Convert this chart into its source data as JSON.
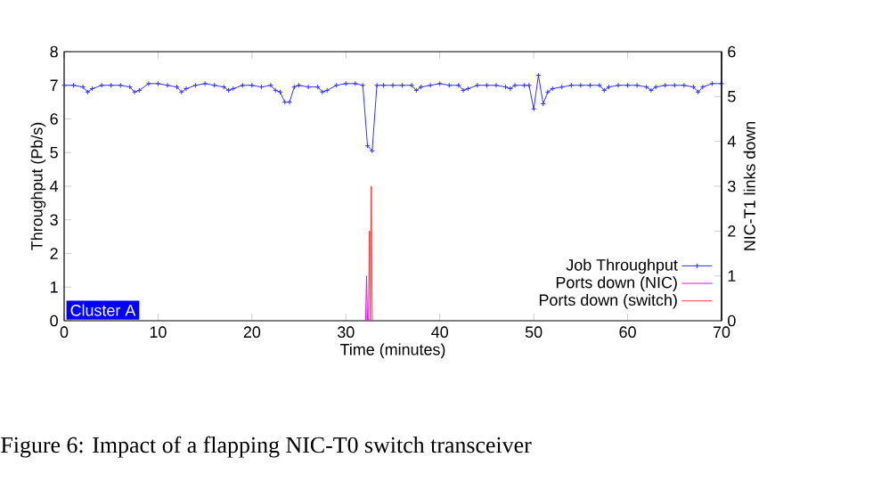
{
  "chart_data": {
    "type": "line",
    "xlabel": "Time (minutes)",
    "ylabel": "Throughput (Pb/s)",
    "y2label": "NIC-T1 links down",
    "xlim": [
      0,
      70
    ],
    "xticks": [
      0,
      10,
      20,
      30,
      40,
      50,
      60,
      70
    ],
    "ylim": [
      0,
      8
    ],
    "yticks": [
      0,
      1,
      2,
      3,
      4,
      5,
      6,
      7,
      8
    ],
    "y2lim": [
      0,
      6
    ],
    "y2ticks": [
      0,
      1,
      2,
      3,
      4,
      5,
      6
    ],
    "legend": "bottom right",
    "annotations": [
      "Cluster A",
      "Figure 6: Impact of a flapping NIC-T0 switch transceiver"
    ],
    "series": [
      {
        "name": "Job Throughput",
        "color": "#3333ff",
        "marker": "cross",
        "x": [
          0,
          1,
          2,
          2.5,
          3,
          4,
          5,
          6,
          7,
          7.5,
          8,
          9,
          10,
          11,
          12,
          12.5,
          13,
          14,
          15,
          16,
          17,
          17.5,
          18,
          19,
          20,
          21,
          22,
          22.5,
          23,
          23.5,
          24,
          24.5,
          25,
          26,
          27,
          27.5,
          28,
          29,
          30,
          31,
          31.8,
          32.3,
          32.8,
          33.3,
          34,
          35,
          36,
          37,
          37.5,
          38,
          39,
          40,
          41,
          42,
          42.5,
          43,
          44,
          45,
          46,
          47,
          47.5,
          48,
          49,
          49.5,
          50,
          50.5,
          51,
          51.5,
          52,
          53,
          54,
          55,
          56,
          57,
          57.5,
          58,
          59,
          60,
          61,
          62,
          62.5,
          63,
          64,
          65,
          66,
          67,
          67.5,
          68,
          69,
          70
        ],
        "values": [
          7.0,
          7.0,
          6.95,
          6.8,
          6.9,
          7.0,
          7.0,
          7.0,
          6.95,
          6.8,
          6.85,
          7.05,
          7.05,
          7.0,
          6.95,
          6.8,
          6.9,
          7.0,
          7.05,
          7.0,
          6.95,
          6.85,
          6.9,
          7.0,
          7.0,
          6.95,
          7.0,
          6.85,
          6.8,
          6.5,
          6.5,
          6.95,
          7.0,
          6.95,
          6.95,
          6.8,
          6.85,
          7.0,
          7.05,
          7.05,
          7.0,
          5.2,
          5.05,
          7.0,
          7.0,
          7.0,
          7.0,
          7.0,
          6.85,
          6.95,
          7.0,
          7.05,
          7.0,
          7.0,
          6.85,
          6.9,
          7.0,
          7.0,
          7.0,
          6.95,
          6.9,
          7.0,
          7.0,
          7.0,
          6.3,
          7.3,
          6.45,
          6.8,
          6.9,
          6.95,
          7.0,
          7.0,
          7.0,
          7.0,
          6.85,
          6.95,
          7.0,
          7.0,
          7.0,
          6.95,
          6.85,
          6.95,
          7.0,
          7.0,
          7.0,
          6.95,
          6.8,
          6.95,
          7.05,
          7.05
        ]
      },
      {
        "name": "Ports down (NIC)",
        "color": "#ff00ff",
        "axis": "y2",
        "x": [
          32.1,
          32.2,
          32.3
        ],
        "values": [
          0,
          1,
          0
        ]
      },
      {
        "name": "Ports down (switch)",
        "color": "#ff3333",
        "axis": "y2",
        "x": [
          32.4,
          32.5,
          32.6,
          32.7,
          32.8
        ],
        "values": [
          0,
          2,
          0,
          3,
          0
        ]
      }
    ]
  }
}
